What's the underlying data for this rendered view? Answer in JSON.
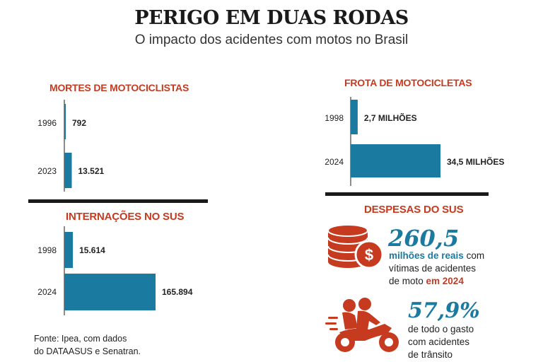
{
  "header": {
    "title": "PERIGO EM DUAS RODAS",
    "subtitle": "O impacto dos acidentes com motos no Brasil"
  },
  "chart_data": [
    {
      "type": "bar",
      "orientation": "horizontal",
      "title": "MORTES DE MOTOCICLISTAS",
      "categories": [
        "1996",
        "2023"
      ],
      "values": [
        792,
        13521
      ],
      "labels": [
        "792",
        "13.521"
      ],
      "xlim": [
        0,
        165894
      ]
    },
    {
      "type": "bar",
      "orientation": "horizontal",
      "title": "INTERNAÇÕES NO SUS",
      "categories": [
        "1998",
        "2024"
      ],
      "values": [
        15614,
        165894
      ],
      "labels": [
        "15.614",
        "165.894"
      ],
      "xlim": [
        0,
        165894
      ]
    },
    {
      "type": "bar",
      "orientation": "horizontal",
      "title": "FROTA DE MOTOCICLETAS",
      "categories": [
        "1998",
        "2024"
      ],
      "values": [
        2.7,
        34.5
      ],
      "labels": [
        "2,7 MILHÕES",
        "34,5 MILHÕES"
      ],
      "xlim": [
        0,
        34.5
      ]
    }
  ],
  "despesas": {
    "title": "DESPESAS DO SUS",
    "stat1": {
      "value": "260,5",
      "line1_highlight": "milhões de reais",
      "line1_rest": " com",
      "line2": "vítimas de acidentes",
      "line3_start": "de moto ",
      "line3_highlight": "em 2024"
    },
    "stat2": {
      "value": "57,9%",
      "line1": "de todo o gasto",
      "line2": "com acidentes",
      "line3": "de trânsito"
    }
  },
  "icons": {
    "coins": "coins-dollar-icon",
    "moto": "motorcycle-riders-icon"
  },
  "colors": {
    "bar": "#1a7aa0",
    "accent": "#c63a1f",
    "number": "#1a7aa0"
  },
  "source": {
    "line1": "Fonte: Ipea, com dados",
    "line2": "do DATAASUS e Senatran."
  }
}
